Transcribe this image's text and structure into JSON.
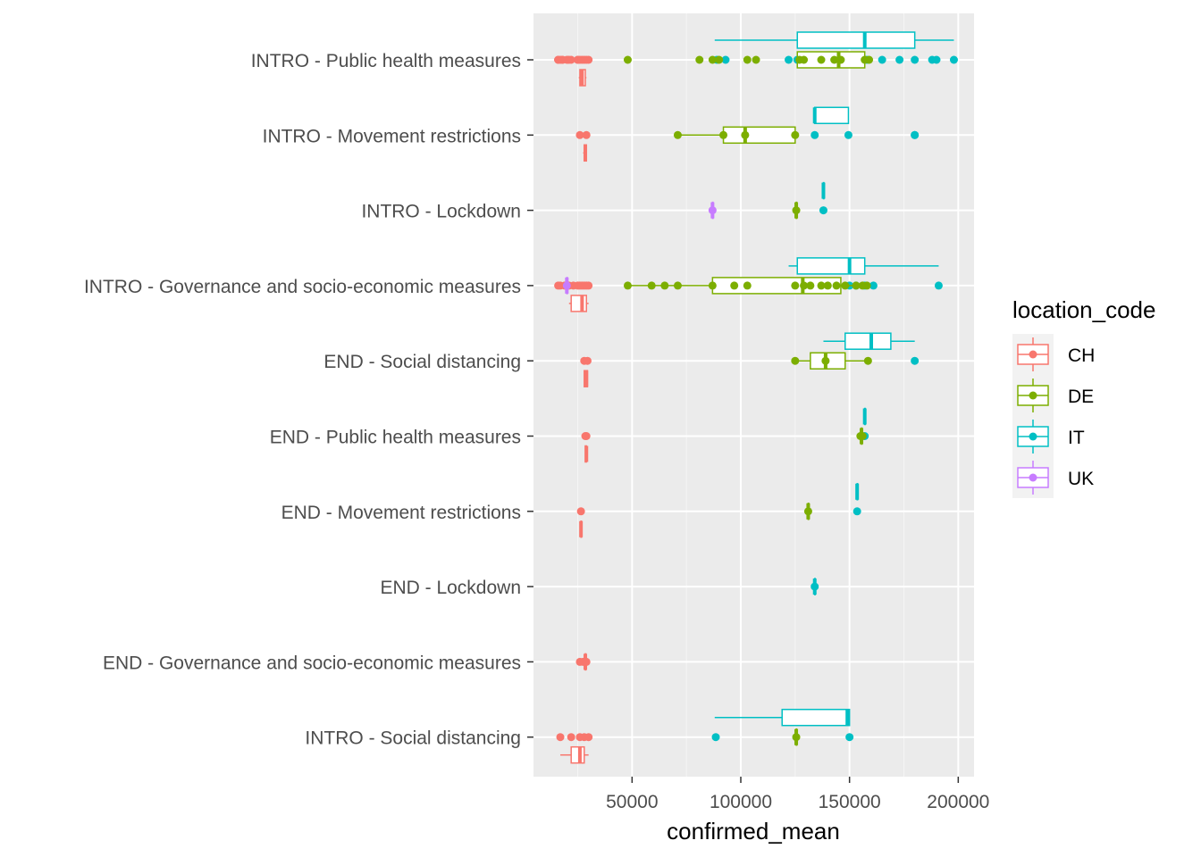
{
  "chart_data": {
    "type": "box",
    "orientation": "horizontal",
    "xlabel": "confirmed_mean",
    "ylabel": "",
    "xlim": [
      10000,
      218000
    ],
    "xticks": [
      50000,
      100000,
      150000,
      200000
    ],
    "xtick_labels": [
      "50000",
      "100000",
      "150000",
      "200000"
    ],
    "grid": true,
    "legend": {
      "title": "location_code",
      "placement": "right",
      "entries": [
        {
          "name": "CH",
          "color": "#F8766D"
        },
        {
          "name": "DE",
          "color": "#7CAE00"
        },
        {
          "name": "IT",
          "color": "#00BFC4"
        },
        {
          "name": "UK",
          "color": "#C77CFF"
        }
      ]
    },
    "categories": [
      "INTRO - Public health measures",
      "INTRO - Movement restrictions",
      "INTRO - Lockdown",
      "INTRO - Governance and socio-economic measures",
      "END - Social distancing",
      "END - Public health measures",
      "END - Movement restrictions",
      "END - Lockdown",
      "END - Governance and socio-economic measures",
      "INTRO - Social distancing"
    ],
    "boxes": [
      {
        "cat": 0,
        "loc": "IT",
        "stats": [
          88000,
          126000,
          157000,
          180000,
          198000
        ],
        "points": [
          122000,
          126000,
          130000,
          137000,
          145000,
          150000,
          158000,
          165000,
          173000,
          180000,
          188000,
          190000,
          198000,
          89000,
          93000
        ]
      },
      {
        "cat": 0,
        "loc": "DE",
        "stats": [
          126000,
          126000,
          145000,
          157000,
          157000
        ],
        "points": [
          48000,
          81000,
          87000,
          90000,
          103000,
          107000,
          127000,
          129000,
          137000,
          143000,
          146000,
          157000,
          159000
        ]
      },
      {
        "cat": 0,
        "loc": "CH",
        "stats": [
          25500,
          26000,
          27000,
          28500,
          29000
        ],
        "points": [
          16000,
          17000,
          18000,
          20000,
          22000,
          25000,
          26000,
          27000,
          28000,
          29000,
          30000,
          16000,
          18000,
          21000,
          25000
        ]
      },
      {
        "cat": 1,
        "loc": "IT",
        "stats": [
          134000,
          134000,
          134000,
          149500,
          149500
        ],
        "points": [
          134000,
          149500,
          180000,
          180000
        ]
      },
      {
        "cat": 1,
        "loc": "DE",
        "stats": [
          71000,
          92000,
          102000,
          125000,
          125000
        ],
        "points": [
          71000,
          92000,
          102000,
          125000
        ]
      },
      {
        "cat": 1,
        "loc": "CH",
        "stats": [
          27500,
          28000,
          28500,
          29000,
          29000
        ],
        "points": [
          26000,
          29000
        ]
      },
      {
        "cat": 2,
        "loc": "IT",
        "stats": [
          138000,
          138000,
          138000,
          138000,
          138000
        ],
        "points": [
          138000
        ]
      },
      {
        "cat": 2,
        "loc": "DE",
        "stats": [
          125500,
          125500,
          125500,
          125500,
          125500
        ],
        "points": [
          125500
        ]
      },
      {
        "cat": 2,
        "loc": "UK",
        "stats": [
          87000,
          87000,
          87000,
          87000,
          87000
        ],
        "points": [
          87000
        ]
      },
      {
        "cat": 3,
        "loc": "IT",
        "stats": [
          122000,
          126000,
          150000,
          157000,
          191000
        ],
        "points": [
          122000,
          126000,
          150000,
          153000,
          157000,
          161000,
          191000
        ]
      },
      {
        "cat": 3,
        "loc": "DE",
        "stats": [
          48000,
          87000,
          128500,
          146000,
          158000
        ],
        "points": [
          48000,
          59000,
          65000,
          71000,
          87000,
          97000,
          103000,
          125000,
          129000,
          132000,
          137000,
          140000,
          144000,
          148000,
          153000,
          156000,
          158000
        ]
      },
      {
        "cat": 3,
        "loc": "CH",
        "stats": [
          21000,
          22000,
          27000,
          29000,
          30000
        ],
        "points": [
          16000,
          17000,
          19000,
          21000,
          23000,
          25000,
          26000,
          27000,
          28000,
          29000,
          30000
        ]
      },
      {
        "cat": 3,
        "loc": "UK",
        "stats": [
          20000,
          20000,
          20000,
          20000,
          20000
        ],
        "points": [
          20000
        ]
      },
      {
        "cat": 4,
        "loc": "IT",
        "stats": [
          138000,
          148000,
          160000,
          169000,
          180000
        ],
        "points": [
          140000,
          180000
        ]
      },
      {
        "cat": 4,
        "loc": "DE",
        "stats": [
          125000,
          132000,
          139000,
          148000,
          158500
        ],
        "points": [
          125000,
          139000,
          158500
        ]
      },
      {
        "cat": 4,
        "loc": "CH",
        "stats": [
          28000,
          28000,
          29000,
          29500,
          29500
        ],
        "points": [
          28000,
          29500
        ]
      },
      {
        "cat": 5,
        "loc": "IT",
        "stats": [
          157000,
          157000,
          157000,
          157000,
          157000
        ],
        "points": [
          157000
        ]
      },
      {
        "cat": 5,
        "loc": "DE",
        "stats": [
          155500,
          155500,
          155500,
          155500,
          155500
        ],
        "points": [
          155000,
          156000
        ]
      },
      {
        "cat": 5,
        "loc": "CH",
        "stats": [
          28500,
          28500,
          29000,
          29000,
          29000
        ],
        "points": [
          28500,
          29000
        ]
      },
      {
        "cat": 6,
        "loc": "IT",
        "stats": [
          153500,
          153500,
          153500,
          153500,
          153500
        ],
        "points": [
          153500
        ]
      },
      {
        "cat": 6,
        "loc": "DE",
        "stats": [
          131000,
          131000,
          131000,
          131000,
          131000
        ],
        "points": [
          131000
        ]
      },
      {
        "cat": 6,
        "loc": "CH",
        "stats": [
          26500,
          26500,
          26500,
          26500,
          26500
        ],
        "points": [
          26500
        ]
      },
      {
        "cat": 7,
        "loc": "IT",
        "stats": [
          134000,
          134000,
          134000,
          134000,
          134000
        ],
        "points": [
          134000
        ]
      },
      {
        "cat": 8,
        "loc": "CH",
        "stats": [
          28500,
          28500,
          28500,
          28500,
          28500
        ],
        "points": [
          26000,
          27500,
          29000
        ]
      },
      {
        "cat": 9,
        "loc": "IT",
        "stats": [
          88000,
          119000,
          149000,
          150000,
          150000
        ],
        "points": [
          88500,
          150000
        ]
      },
      {
        "cat": 9,
        "loc": "DE",
        "stats": [
          125500,
          125500,
          125500,
          125500,
          125500
        ],
        "points": [
          125500
        ]
      },
      {
        "cat": 9,
        "loc": "CH",
        "stats": [
          17000,
          22000,
          26000,
          28000,
          30000
        ],
        "points": [
          17000,
          22000,
          26000,
          28000,
          30000
        ]
      }
    ]
  }
}
